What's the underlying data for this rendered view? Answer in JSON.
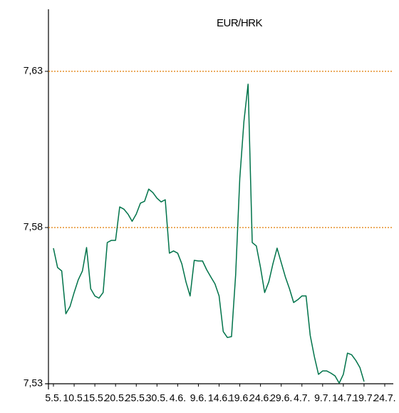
{
  "chart_data": {
    "type": "line",
    "title": "EUR/HRK",
    "categories": [
      "5.5.",
      null,
      null,
      null,
      null,
      "10.5.",
      null,
      null,
      null,
      null,
      "15.5.",
      null,
      null,
      null,
      null,
      "20.5.",
      null,
      null,
      null,
      null,
      "25.5.",
      null,
      null,
      null,
      null,
      "30.5.",
      null,
      null,
      null,
      null,
      "4.6.",
      null,
      null,
      null,
      null,
      "9.6.",
      null,
      null,
      null,
      null,
      "14.6.",
      null,
      null,
      null,
      null,
      "19.6.",
      null,
      null,
      null,
      null,
      "24.6.",
      null,
      null,
      null,
      null,
      "29.6.",
      null,
      null,
      null,
      null,
      "4.7.",
      null,
      null,
      null,
      null,
      "9.7.",
      null,
      null,
      null,
      null,
      "14.7.",
      null,
      null,
      null,
      null,
      "19.7.",
      null,
      null,
      null,
      null,
      "24.7."
    ],
    "series": [
      {
        "name": "EUR/HRK",
        "color": "#00734a",
        "values": [
          7.5734,
          7.5672,
          7.5661,
          7.5524,
          7.5547,
          7.5592,
          7.5633,
          7.5661,
          7.5736,
          7.5604,
          7.5581,
          7.5574,
          7.5592,
          7.5752,
          7.5759,
          7.5759,
          7.5866,
          7.5859,
          7.5843,
          7.582,
          7.5843,
          7.5878,
          7.5884,
          7.5923,
          7.5912,
          7.5894,
          7.5882,
          7.5889,
          7.5718,
          7.5725,
          7.5718,
          7.5684,
          7.5626,
          7.5581,
          7.5695,
          7.5693,
          7.5693,
          7.5665,
          7.5642,
          7.562,
          7.5581,
          7.5467,
          7.5448,
          7.5451,
          7.5649,
          7.5958,
          7.614,
          7.6259,
          7.5752,
          7.5741,
          7.5672,
          7.5592,
          7.5626,
          7.5684,
          7.5734,
          7.5688,
          7.5642,
          7.5604,
          7.556,
          7.5569,
          7.5581,
          7.5581,
          7.5455,
          7.5387,
          7.533,
          7.5341,
          7.5341,
          7.5334,
          7.5325,
          7.5302,
          7.533,
          7.5398,
          7.5393,
          7.5375,
          7.5352,
          7.5307,
          null,
          null,
          null,
          null,
          null
        ]
      }
    ],
    "ylim": [
      7.53,
      7.65
    ],
    "yticks": [
      {
        "value": 7.53,
        "label": "7,53"
      },
      {
        "value": 7.58,
        "label": "7,58"
      },
      {
        "value": 7.63,
        "label": "7,63"
      }
    ],
    "grid": true,
    "grid_color": "#e07b00"
  }
}
